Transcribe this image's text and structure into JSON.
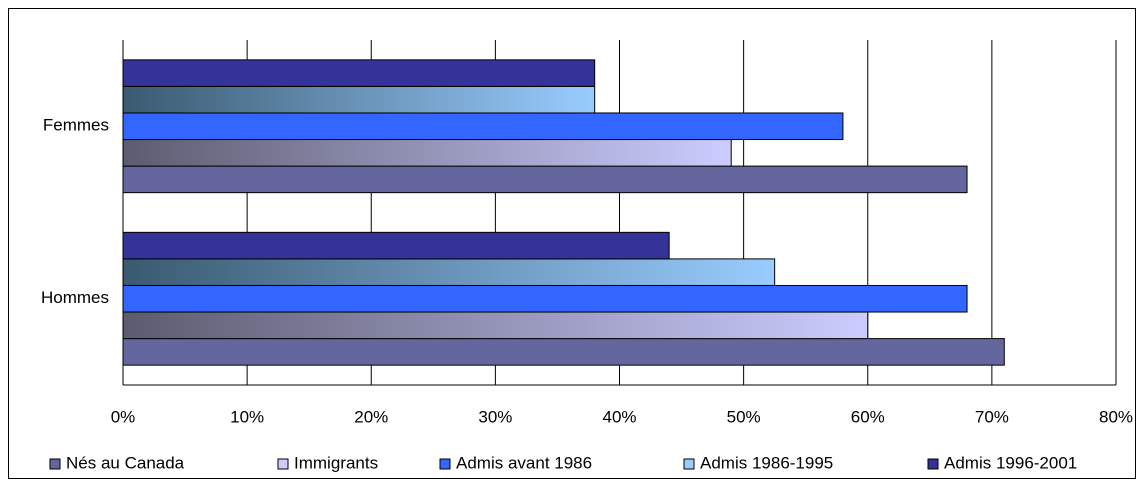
{
  "chart_data": {
    "type": "bar",
    "orientation": "horizontal",
    "categories": [
      "Femmes",
      "Hommes"
    ],
    "series": [
      {
        "name": "Nés au Canada",
        "color": "#66669f",
        "values": [
          68,
          71
        ]
      },
      {
        "name": "Immigrants",
        "color": "#ccccff",
        "gradient_start": "#5c5c70",
        "values": [
          49,
          60
        ]
      },
      {
        "name": "Admis avant 1986",
        "color": "#3366ff",
        "values": [
          58,
          68
        ]
      },
      {
        "name": "Admis 1986-1995",
        "color": "#99ccff",
        "gradient_start": "#3a5a70",
        "values": [
          38,
          52.5
        ]
      },
      {
        "name": "Admis 1996-2001",
        "color": "#333399",
        "values": [
          38,
          44
        ]
      }
    ],
    "xlim": [
      0,
      80
    ],
    "xticks": [
      {
        "value": 0,
        "label": "0%"
      },
      {
        "value": 10,
        "label": "10%"
      },
      {
        "value": 20,
        "label": "20%"
      },
      {
        "value": 30,
        "label": "30%"
      },
      {
        "value": 40,
        "label": "40%"
      },
      {
        "value": 50,
        "label": "50%"
      },
      {
        "value": 60,
        "label": "60%"
      },
      {
        "value": 70,
        "label": "70%"
      },
      {
        "value": 80,
        "label": "80%"
      }
    ],
    "grid": true,
    "legend": "bottom"
  }
}
